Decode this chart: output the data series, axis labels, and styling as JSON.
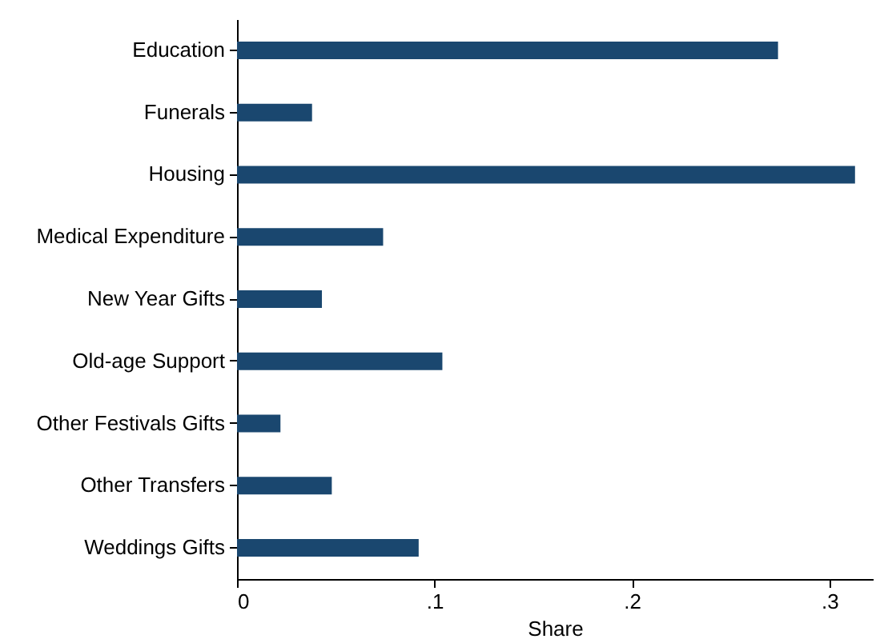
{
  "chart_data": {
    "type": "bar",
    "orientation": "horizontal",
    "xlabel": "Share",
    "categories": [
      "Education",
      "Funerals",
      "Housing",
      "Medical Expenditure",
      "New Year Gifts",
      "Old-age Support",
      "Other Festivals Gifts",
      "Other Transfers",
      "Weddings Gifts"
    ],
    "values": [
      0.274,
      0.038,
      0.313,
      0.074,
      0.043,
      0.104,
      0.022,
      0.048,
      0.092
    ],
    "color": "#1a476f",
    "xlim": [
      0,
      0.322
    ],
    "xticks": [
      0,
      {
        "value": 0.1,
        "label": ".1"
      },
      {
        "value": 0.2,
        "label": ".2"
      },
      {
        "value": 0.3,
        "label": ".3"
      }
    ],
    "grid": false
  }
}
